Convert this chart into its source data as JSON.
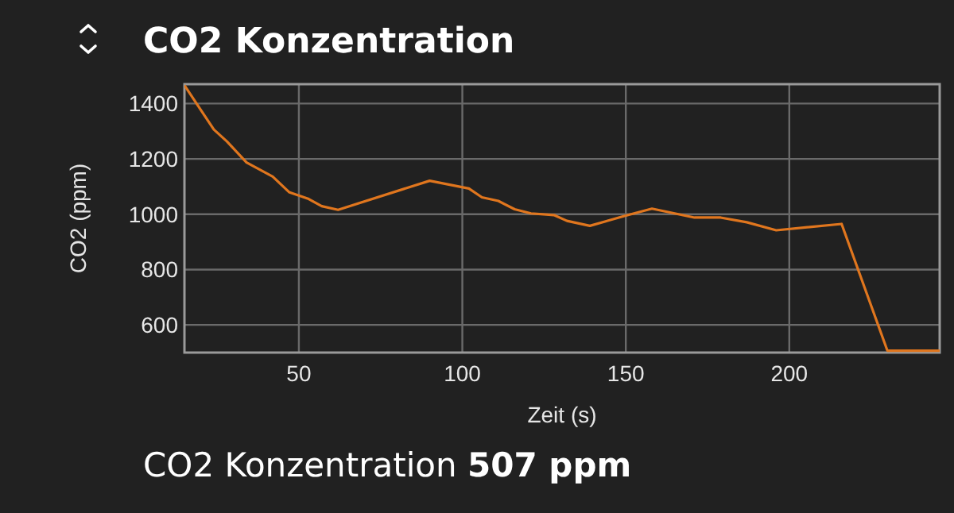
{
  "chart_data": {
    "type": "line",
    "title": "CO2 Konzentration",
    "xlabel": "Zeit (s)",
    "ylabel": "CO2 (ppm)",
    "annotations": [
      "CO2 Konzentration 507 ppm"
    ],
    "x": [
      15,
      24,
      28,
      34,
      42,
      47,
      53,
      57,
      62,
      90,
      102,
      106,
      111,
      116,
      121,
      128,
      132,
      139,
      150,
      158,
      171,
      179,
      187,
      196,
      216,
      230,
      246
    ],
    "series": [
      {
        "color": "#e0761e",
        "values": [
          1466,
          1306,
          1263,
          1187,
          1136,
          1080,
          1055,
          1029,
          1016,
          1121,
          1093,
          1061,
          1048,
          1018,
          1003,
          997,
          976,
          958,
          995,
          1020,
          988,
          988,
          971,
          942,
          965,
          507,
          507
        ]
      }
    ],
    "xlim": [
      15,
      246
    ],
    "xticks": [
      50,
      100,
      150,
      200
    ],
    "ylim": [
      500,
      1470
    ],
    "yticks": [
      600,
      800,
      1000,
      1200,
      1400
    ],
    "grid": true,
    "marker": "none",
    "line_style": "solid"
  }
}
